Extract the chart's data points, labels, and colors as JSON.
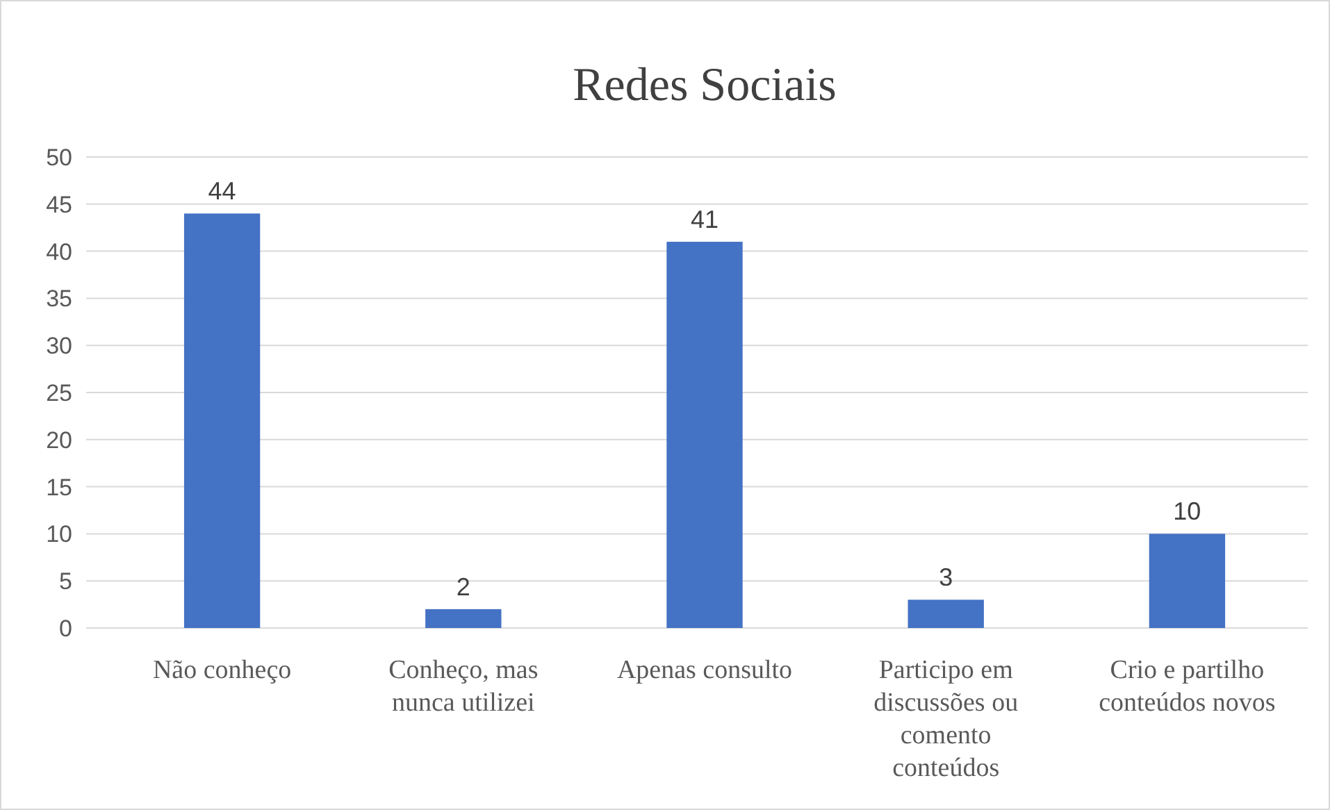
{
  "chart_data": {
    "type": "bar",
    "title": "Redes Sociais",
    "categories": [
      "Não conheço",
      "Conheço, mas nunca utilizei",
      "Apenas consulto",
      "Participo em discussões ou comento conteúdos",
      "Crio e partilho conteúdos novos"
    ],
    "values": [
      44,
      2,
      41,
      3,
      10
    ],
    "color": "#4472c4",
    "ylim": [
      0,
      50
    ],
    "yticks": [
      0,
      5,
      10,
      15,
      20,
      25,
      30,
      35,
      40,
      45,
      50
    ],
    "grid": "y",
    "data_labels": true
  }
}
